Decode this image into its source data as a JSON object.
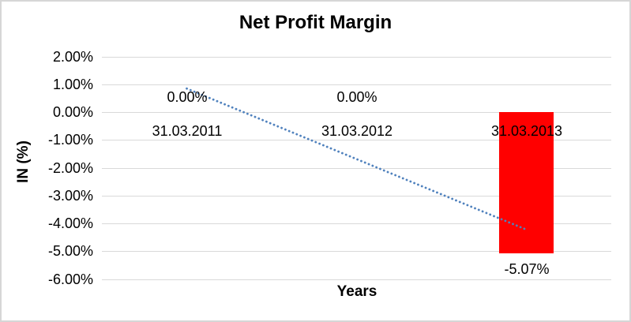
{
  "chart_data": {
    "type": "bar",
    "title": "Net Profit Margin",
    "xlabel": "Years",
    "ylabel": "IN (%)",
    "categories": [
      "31.03.2011",
      "31.03.2012",
      "31.03.2013"
    ],
    "values": [
      0,
      0,
      -5.07
    ],
    "data_labels": [
      "0.00%",
      "0.00%",
      "-5.07%"
    ],
    "y_ticks": [
      {
        "value": 2,
        "label": "2.00%"
      },
      {
        "value": 1,
        "label": "1.00%"
      },
      {
        "value": 0,
        "label": "0.00%"
      },
      {
        "value": -1,
        "label": "-1.00%"
      },
      {
        "value": -2,
        "label": "-2.00%"
      },
      {
        "value": -3,
        "label": "-3.00%"
      },
      {
        "value": -4,
        "label": "-4.00%"
      },
      {
        "value": -5,
        "label": "-5.00%"
      },
      {
        "value": -6,
        "label": "-6.00%"
      }
    ],
    "ylim": [
      -6,
      2
    ],
    "grid": true,
    "legend": "none",
    "trendline": {
      "kind": "linear",
      "style": "dotted",
      "endpoint_values": [
        0.845,
        -4.225
      ]
    },
    "colors": {
      "bar": "#FF0000",
      "trendline": "#4F81BD",
      "gridline": "#D9D9D9",
      "text": "#000000",
      "border": "#D6D6D6",
      "background": "#FFFFFF"
    }
  }
}
